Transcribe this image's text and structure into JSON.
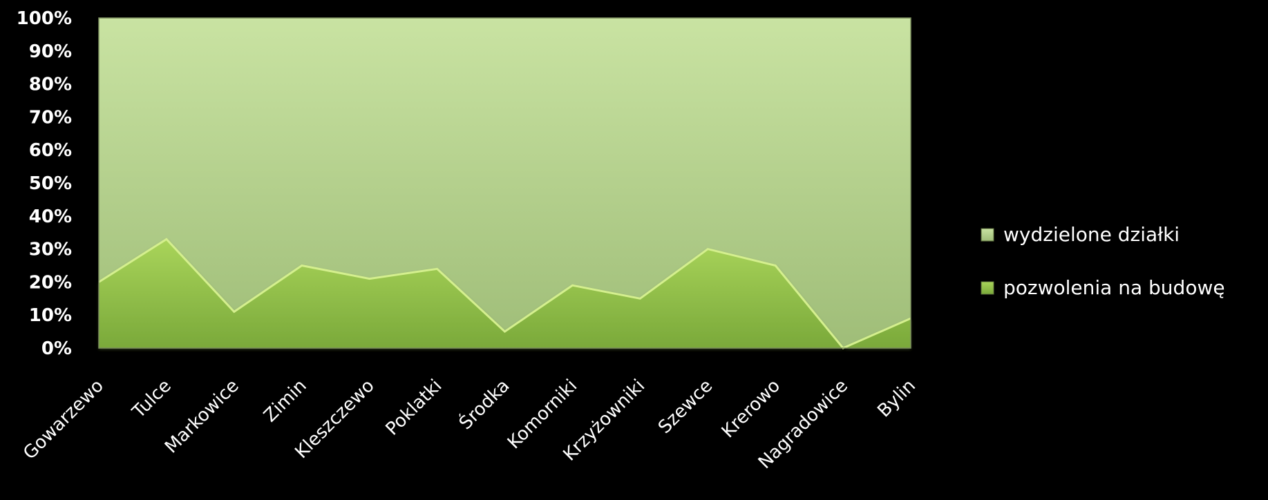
{
  "chart_data": {
    "type": "area",
    "stacked": "percent",
    "categories": [
      "Gowarzewo",
      "Tulce",
      "Markowice",
      "Zimin",
      "Kleszczewo",
      "Poklatki",
      "Środka",
      "Komorniki",
      "Krzyżowniki",
      "Szewce",
      "Krerowo",
      "Nagradowice",
      "Bylin"
    ],
    "series": [
      {
        "name": "pozwolenia na budowę",
        "values": [
          20,
          33,
          11,
          25,
          21,
          24,
          5,
          19,
          15,
          30,
          25,
          0,
          9
        ]
      },
      {
        "name": "wydzielone działki",
        "values": [
          80,
          67,
          89,
          75,
          79,
          76,
          95,
          81,
          85,
          70,
          75,
          100,
          91
        ]
      }
    ],
    "yticks": [
      "0%",
      "10%",
      "20%",
      "30%",
      "40%",
      "50%",
      "60%",
      "70%",
      "80%",
      "90%",
      "100%"
    ],
    "ylim": [
      0,
      100
    ],
    "legend": "right",
    "grid": false,
    "colors": {
      "background": "#000000",
      "upper_area_top": "#c9e3a2",
      "upper_area_bottom": "#9fbd78",
      "lower_area_top": "#a9d45a",
      "lower_area_bottom": "#7aa93a",
      "text": "#ffffff"
    }
  }
}
